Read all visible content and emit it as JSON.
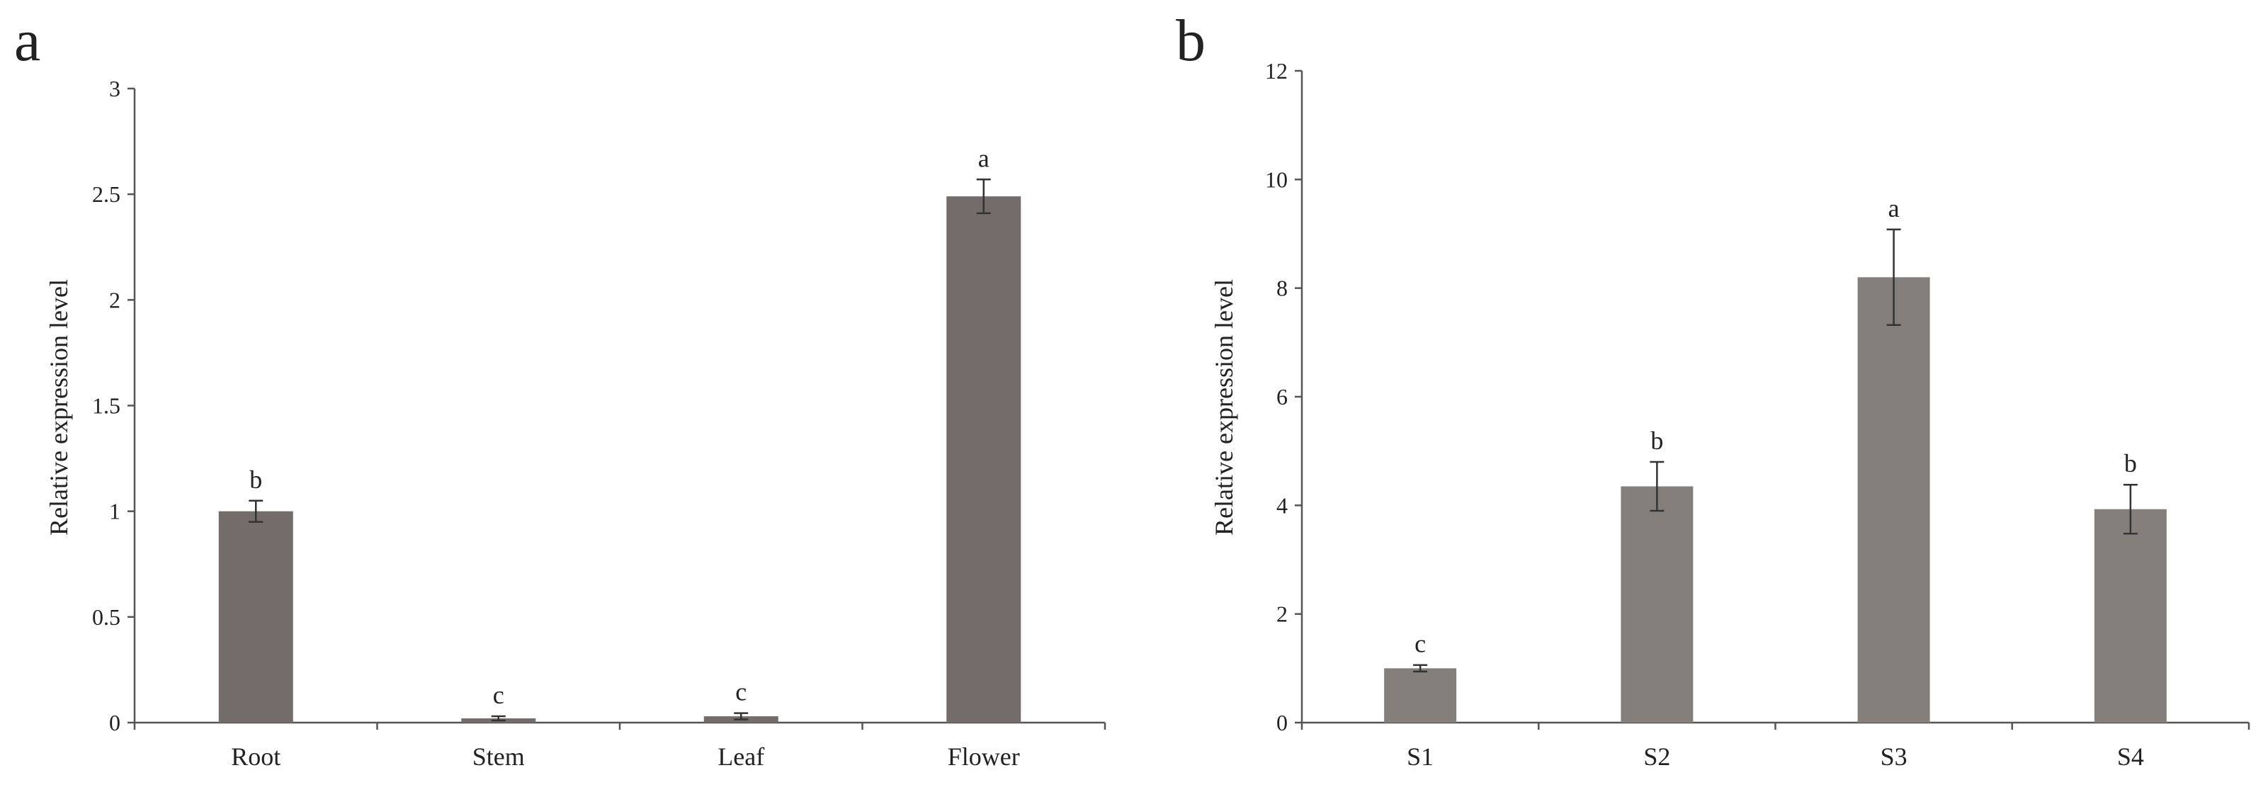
{
  "chart_data": [
    {
      "panel": "a",
      "type": "bar",
      "categories": [
        "Root",
        "Stem",
        "Leaf",
        "Flower"
      ],
      "values": [
        1.0,
        0.02,
        0.03,
        2.49
      ],
      "errors": [
        0.05,
        0.01,
        0.015,
        0.08
      ],
      "significance": [
        "b",
        "c",
        "c",
        "a"
      ],
      "ylabel": "Relative expression level",
      "xlabel": "",
      "ylim": [
        0,
        3
      ],
      "yticks": [
        "0",
        "0.5",
        "1",
        "1.5",
        "2",
        "2.5",
        "3"
      ],
      "bar_color": "#736c6b",
      "grid": false
    },
    {
      "panel": "b",
      "type": "bar",
      "categories": [
        "S1",
        "S2",
        "S3",
        "S4"
      ],
      "values": [
        1.0,
        4.35,
        8.2,
        3.93
      ],
      "errors": [
        0.06,
        0.45,
        0.88,
        0.45
      ],
      "significance": [
        "c",
        "b",
        "a",
        "b"
      ],
      "ylabel": "Relative expression level",
      "xlabel": "",
      "ylim": [
        0,
        12
      ],
      "yticks": [
        "0",
        "2",
        "4",
        "6",
        "8",
        "10",
        "12"
      ],
      "bar_color": "#857f7c",
      "grid": false
    }
  ]
}
